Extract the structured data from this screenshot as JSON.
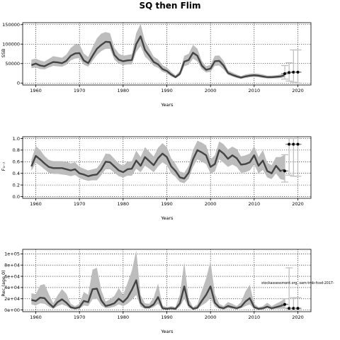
{
  "chart_data": [
    {
      "type": "line",
      "title": "SQ then Flim",
      "xlabel": "Years",
      "ylabel": "SSB",
      "xlim": [
        1957,
        2023
      ],
      "ylim": [
        -5000,
        155000
      ],
      "xticks": [
        1960,
        1970,
        1980,
        1990,
        2000,
        2010,
        2020
      ],
      "yticks": [
        0,
        50000,
        100000,
        150000
      ],
      "ytick_labels": [
        "0",
        "50000",
        "100000",
        "150000"
      ],
      "grid": true,
      "series": [
        {
          "x": [
            1959,
            1960,
            1961,
            1962,
            1963,
            1964,
            1965,
            1966,
            1967,
            1968,
            1969,
            1970,
            1971,
            1972,
            1973,
            1974,
            1975,
            1976,
            1977,
            1978,
            1979,
            1980,
            1981,
            1982,
            1983,
            1984,
            1985,
            1986,
            1987,
            1988,
            1989,
            1990,
            1991,
            1992,
            1993,
            1994,
            1995,
            1996,
            1997,
            1998,
            1999,
            2000,
            2001,
            2002,
            2003,
            2004,
            2005,
            2006,
            2007,
            2008,
            2009,
            2010,
            2011,
            2012,
            2013,
            2014,
            2015,
            2016,
            2017
          ],
          "median": [
            46000,
            50000,
            45000,
            43000,
            49000,
            54000,
            53000,
            51000,
            57000,
            70000,
            76000,
            77000,
            58000,
            51000,
            70000,
            88000,
            98000,
            106000,
            105000,
            72000,
            60000,
            56000,
            58000,
            59000,
            100000,
            120000,
            85000,
            70000,
            54000,
            48000,
            36000,
            31000,
            22000,
            15000,
            24000,
            55000,
            59000,
            78000,
            70000,
            45000,
            34000,
            37000,
            56000,
            57000,
            45000,
            26000,
            21000,
            17000,
            14000,
            17000,
            19000,
            20000,
            19000,
            17000,
            15000,
            15000,
            16000,
            17000,
            20000
          ],
          "lower": [
            38000,
            40000,
            36000,
            35000,
            40000,
            44000,
            43000,
            42000,
            47000,
            58000,
            63000,
            64000,
            47000,
            42000,
            57000,
            72000,
            82000,
            88000,
            88000,
            60000,
            50000,
            46000,
            48000,
            48000,
            80000,
            95000,
            68000,
            57000,
            44000,
            39000,
            29000,
            25000,
            17000,
            12000,
            19000,
            43000,
            47000,
            63000,
            55000,
            36000,
            27000,
            29000,
            44000,
            45000,
            35000,
            21000,
            17000,
            13000,
            11000,
            13000,
            15000,
            16000,
            15000,
            13000,
            12000,
            12000,
            12000,
            13000,
            15000
          ],
          "upper": [
            60000,
            63000,
            58000,
            55000,
            62000,
            69000,
            67000,
            65000,
            73000,
            90000,
            99000,
            100000,
            76000,
            67000,
            92000,
            115000,
            127000,
            131000,
            128000,
            91000,
            76000,
            70000,
            72000,
            74000,
            128000,
            152000,
            108000,
            88000,
            68000,
            61000,
            46000,
            40000,
            29000,
            20000,
            31000,
            70000,
            75000,
            98000,
            88000,
            57000,
            43000,
            47000,
            70000,
            71000,
            57000,
            33000,
            27000,
            22000,
            18000,
            22000,
            24000,
            25000,
            24000,
            22000,
            19000,
            19000,
            20000,
            22000,
            26000
          ]
        }
      ],
      "projection": {
        "x": [
          2017,
          2018,
          2019,
          2020
        ],
        "points": [
          24000,
          27000,
          28000,
          28000
        ],
        "lower": [
          10000,
          5000,
          2000,
          0
        ],
        "upper": [
          45000,
          52000,
          85000,
          85000
        ]
      }
    },
    {
      "type": "line",
      "xlabel": "Years",
      "ylabel": "F₃₋₇",
      "xlim": [
        1957,
        2023
      ],
      "ylim": [
        -0.03,
        1.03
      ],
      "xticks": [
        1960,
        1970,
        1980,
        1990,
        2000,
        2010,
        2020
      ],
      "yticks": [
        0.0,
        0.2,
        0.4,
        0.6,
        0.8,
        1.0
      ],
      "ytick_labels": [
        "0.0",
        "0.2",
        "0.4",
        "0.6",
        "0.8",
        "1.0"
      ],
      "grid": true,
      "series": [
        {
          "x": [
            1959,
            1960,
            1961,
            1962,
            1963,
            1964,
            1965,
            1966,
            1967,
            1968,
            1969,
            1970,
            1971,
            1972,
            1973,
            1974,
            1975,
            1976,
            1977,
            1978,
            1979,
            1980,
            1981,
            1982,
            1983,
            1984,
            1985,
            1986,
            1987,
            1988,
            1989,
            1990,
            1991,
            1992,
            1993,
            1994,
            1995,
            1996,
            1997,
            1998,
            1999,
            2000,
            2001,
            2002,
            2003,
            2004,
            2005,
            2006,
            2007,
            2008,
            2009,
            2010,
            2011,
            2012,
            2013,
            2014,
            2015,
            2016,
            2017
          ],
          "median": [
            0.52,
            0.7,
            0.64,
            0.57,
            0.51,
            0.49,
            0.49,
            0.49,
            0.47,
            0.45,
            0.47,
            0.4,
            0.38,
            0.35,
            0.37,
            0.38,
            0.47,
            0.6,
            0.59,
            0.52,
            0.45,
            0.42,
            0.47,
            0.48,
            0.62,
            0.53,
            0.68,
            0.61,
            0.54,
            0.66,
            0.74,
            0.68,
            0.52,
            0.44,
            0.33,
            0.31,
            0.41,
            0.64,
            0.8,
            0.76,
            0.71,
            0.51,
            0.56,
            0.8,
            0.74,
            0.65,
            0.71,
            0.66,
            0.55,
            0.56,
            0.59,
            0.71,
            0.53,
            0.62,
            0.44,
            0.4,
            0.53,
            0.44,
            0.46
          ],
          "lower": [
            0.44,
            0.58,
            0.53,
            0.47,
            0.41,
            0.39,
            0.39,
            0.38,
            0.37,
            0.35,
            0.37,
            0.32,
            0.29,
            0.27,
            0.28,
            0.28,
            0.37,
            0.47,
            0.47,
            0.41,
            0.35,
            0.33,
            0.36,
            0.36,
            0.48,
            0.42,
            0.53,
            0.48,
            0.42,
            0.52,
            0.59,
            0.54,
            0.4,
            0.34,
            0.25,
            0.23,
            0.31,
            0.51,
            0.64,
            0.6,
            0.56,
            0.4,
            0.43,
            0.64,
            0.58,
            0.51,
            0.55,
            0.51,
            0.41,
            0.42,
            0.45,
            0.55,
            0.4,
            0.46,
            0.33,
            0.3,
            0.4,
            0.3,
            0.28
          ],
          "upper": [
            0.63,
            0.87,
            0.8,
            0.7,
            0.63,
            0.61,
            0.61,
            0.61,
            0.6,
            0.57,
            0.59,
            0.51,
            0.48,
            0.45,
            0.47,
            0.49,
            0.59,
            0.74,
            0.73,
            0.65,
            0.57,
            0.53,
            0.6,
            0.61,
            0.79,
            0.68,
            0.85,
            0.77,
            0.69,
            0.84,
            0.92,
            0.85,
            0.66,
            0.56,
            0.43,
            0.41,
            0.53,
            0.8,
            0.96,
            0.93,
            0.88,
            0.64,
            0.71,
            0.95,
            0.9,
            0.81,
            0.86,
            0.82,
            0.69,
            0.71,
            0.74,
            0.87,
            0.68,
            0.8,
            0.58,
            0.54,
            0.68,
            0.68,
            0.72
          ]
        }
      ],
      "projection": {
        "x": [
          2017,
          2018,
          2019,
          2020
        ],
        "points": [
          0.44,
          0.9,
          0.9,
          0.9
        ],
        "lower": [
          0.25,
          0.37,
          0.35,
          0.35
        ],
        "upper": [
          0.72,
          1.0,
          1.0,
          1.0
        ]
      }
    },
    {
      "type": "line",
      "xlabel": "Years",
      "ylabel": "Rec (age 0)",
      "xlim": [
        1957,
        2023
      ],
      "ylim": [
        -3000,
        108000
      ],
      "xticks": [
        1960,
        1970,
        1980,
        1990,
        2000,
        2010,
        2020
      ],
      "yticks": [
        0,
        20000,
        40000,
        60000,
        80000,
        100000
      ],
      "ytick_labels": [
        "0e+00",
        "2e+04",
        "4e+04",
        "6e+04",
        "8e+04",
        "1e+05"
      ],
      "grid": true,
      "annotation": "stockassessment.org, sam-tmb-fcod-2017-",
      "series": [
        {
          "x": [
            1959,
            1960,
            1961,
            1962,
            1963,
            1964,
            1965,
            1966,
            1967,
            1968,
            1969,
            1970,
            1971,
            1972,
            1973,
            1974,
            1975,
            1976,
            1977,
            1978,
            1979,
            1980,
            1981,
            1982,
            1983,
            1984,
            1985,
            1986,
            1987,
            1988,
            1989,
            1990,
            1991,
            1992,
            1993,
            1994,
            1995,
            1996,
            1997,
            1998,
            1999,
            2000,
            2001,
            2002,
            2003,
            2004,
            2005,
            2006,
            2007,
            2008,
            2009,
            2010,
            2011,
            2012,
            2013,
            2014,
            2015,
            2016,
            2017
          ],
          "median": [
            18000,
            16000,
            22000,
            21000,
            12000,
            5000,
            14000,
            19000,
            13000,
            5000,
            3000,
            5000,
            16000,
            14000,
            37000,
            38000,
            17000,
            7000,
            9000,
            12000,
            20000,
            14000,
            22000,
            36000,
            53000,
            13000,
            5000,
            5000,
            10000,
            23000,
            3000,
            2000,
            3000,
            2000,
            12000,
            42000,
            9000,
            2000,
            4000,
            16000,
            27000,
            42000,
            13000,
            5000,
            3000,
            7000,
            5000,
            3000,
            6000,
            15000,
            21000,
            5000,
            2000,
            3000,
            6000,
            3000,
            5000,
            7000,
            10000
          ],
          "lower": [
            10000,
            8000,
            12000,
            11000,
            6000,
            2000,
            7000,
            10000,
            7000,
            2000,
            1000,
            2000,
            8000,
            7000,
            19000,
            20000,
            8000,
            3000,
            4000,
            6000,
            10000,
            7000,
            11000,
            18000,
            27000,
            6000,
            2000,
            2000,
            5000,
            11000,
            1000,
            1000,
            1000,
            1000,
            6000,
            20000,
            4000,
            1000,
            2000,
            8000,
            13000,
            21000,
            6000,
            2000,
            1000,
            3000,
            2000,
            1000,
            3000,
            7000,
            10000,
            2000,
            1000,
            1000,
            3000,
            1000,
            2000,
            2000,
            3000
          ],
          "upper": [
            30000,
            28000,
            44000,
            46000,
            28000,
            12000,
            26000,
            37000,
            29000,
            11000,
            7000,
            11000,
            32000,
            27000,
            72000,
            75000,
            35000,
            15000,
            19000,
            25000,
            39000,
            27000,
            48000,
            70000,
            106000,
            27000,
            12000,
            11000,
            22000,
            47000,
            8000,
            5000,
            7000,
            5000,
            28000,
            85000,
            20000,
            5000,
            10000,
            34000,
            56000,
            87000,
            29000,
            11000,
            7000,
            14000,
            11000,
            7000,
            14000,
            33000,
            45000,
            11000,
            5000,
            7000,
            13000,
            7000,
            11000,
            15000,
            20000
          ]
        }
      ],
      "projection": {
        "x": [
          2017,
          2018,
          2019,
          2020
        ],
        "points": [
          10000,
          3000,
          3000,
          3000
        ],
        "lower": [
          3000,
          0,
          0,
          0
        ],
        "upper": [
          20000,
          75000,
          22000,
          22000
        ]
      }
    }
  ]
}
